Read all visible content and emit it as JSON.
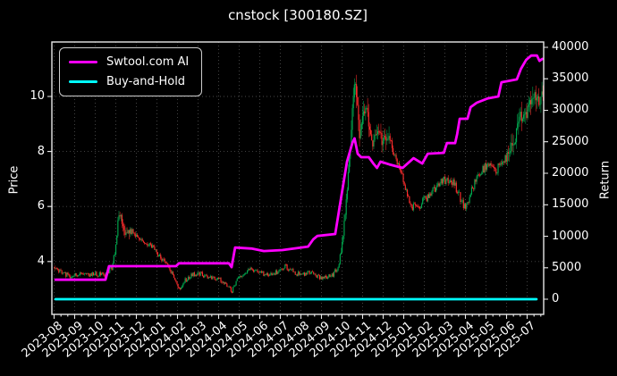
{
  "title": "cnstock [300180.SZ]",
  "colors": {
    "background": "#000000",
    "text": "#ffffff",
    "grid": "#4a4a4a",
    "spine": "#e8e8e8",
    "strategy_line": "#ff00ff",
    "buyhold_line": "#00ffff",
    "candle_up": "#00a94f",
    "candle_down": "#fd2c2c"
  },
  "legend": {
    "items": [
      {
        "label": "Swtool.com AI",
        "color": "#ff00ff"
      },
      {
        "label": "Buy-and-Hold",
        "color": "#00ffff"
      }
    ]
  },
  "axes": {
    "left": {
      "label": "Price",
      "ticks": [
        4,
        6,
        8,
        10
      ],
      "range": [
        2.08,
        11.98
      ]
    },
    "right": {
      "label": "Return",
      "ticks": [
        0,
        5000,
        10000,
        15000,
        20000,
        25000,
        30000,
        35000,
        40000
      ],
      "range": [
        -2410,
        40850
      ]
    },
    "x": {
      "labels": [
        "2023-08",
        "2023-09",
        "2023-10",
        "2023-11",
        "2023-12",
        "2024-01",
        "2024-02",
        "2024-03",
        "2024-04",
        "2024-05",
        "2024-06",
        "2024-07",
        "2024-08",
        "2024-09",
        "2024-10",
        "2024-11",
        "2024-12",
        "2025-01",
        "2025-02",
        "2025-03",
        "2025-04",
        "2025-05",
        "2025-06",
        "2025-07"
      ],
      "range_months": [
        0,
        23.83
      ],
      "label_rotation_deg": 40
    }
  },
  "chart_data": {
    "type": "candlestick+line",
    "title": "cnstock [300180.SZ]",
    "x_axis_months": [
      "2023-08",
      "2023-09",
      "2023-10",
      "2023-11",
      "2023-12",
      "2024-01",
      "2024-02",
      "2024-03",
      "2024-04",
      "2024-05",
      "2024-06",
      "2024-07",
      "2024-08",
      "2024-09",
      "2024-10",
      "2024-11",
      "2024-12",
      "2025-01",
      "2025-02",
      "2025-03",
      "2025-04",
      "2025-05",
      "2025-06",
      "2025-07"
    ],
    "legend_position": "upper-left",
    "grid": "dotted, vertical per month and horizontal at price ticks",
    "series": [
      {
        "name": "Swtool.com AI",
        "type": "line",
        "axis": "right",
        "color": "#ff00ff",
        "points": [
          [
            0.07,
            3100
          ],
          [
            2.5,
            3100
          ],
          [
            2.67,
            5250
          ],
          [
            5.93,
            5250
          ],
          [
            6.07,
            5700
          ],
          [
            8.5,
            5700
          ],
          [
            8.63,
            5100
          ],
          [
            8.8,
            8200
          ],
          [
            9.6,
            8050
          ],
          [
            10.2,
            7650
          ],
          [
            11.1,
            7800
          ],
          [
            12.35,
            8350
          ],
          [
            12.6,
            9500
          ],
          [
            12.8,
            10050
          ],
          [
            13.67,
            10350
          ],
          [
            13.98,
            16600
          ],
          [
            14.24,
            21800
          ],
          [
            14.5,
            24800
          ],
          [
            14.61,
            25550
          ],
          [
            14.76,
            23100
          ],
          [
            14.93,
            22550
          ],
          [
            15.3,
            22550
          ],
          [
            15.52,
            21550
          ],
          [
            15.7,
            20850
          ],
          [
            15.87,
            21850
          ],
          [
            16.3,
            21400
          ],
          [
            16.95,
            20850
          ],
          [
            17.48,
            22400
          ],
          [
            17.9,
            21550
          ],
          [
            18.17,
            23100
          ],
          [
            18.95,
            23250
          ],
          [
            19.1,
            24800
          ],
          [
            19.5,
            24800
          ],
          [
            19.6,
            26250
          ],
          [
            19.72,
            28650
          ],
          [
            20.1,
            28650
          ],
          [
            20.25,
            30500
          ],
          [
            20.55,
            31200
          ],
          [
            21.1,
            31900
          ],
          [
            21.6,
            32200
          ],
          [
            21.75,
            34450
          ],
          [
            22.5,
            34900
          ],
          [
            22.7,
            36600
          ],
          [
            22.95,
            38000
          ],
          [
            23.2,
            38700
          ],
          [
            23.48,
            38700
          ],
          [
            23.6,
            37850
          ],
          [
            23.74,
            38150
          ]
        ]
      },
      {
        "name": "Buy-and-Hold",
        "type": "line",
        "axis": "right",
        "color": "#00ffff",
        "points": [
          [
            0.07,
            0
          ],
          [
            23.45,
            0
          ]
        ]
      },
      {
        "name": "price-candles",
        "type": "candlestick",
        "axis": "left",
        "up_color": "#00a94f",
        "down_color": "#fd2c2c",
        "count": 480,
        "seed": 20240918,
        "close_anchors": [
          [
            0.0,
            3.8
          ],
          [
            0.4,
            3.6
          ],
          [
            0.8,
            3.45
          ],
          [
            1.2,
            3.55
          ],
          [
            1.6,
            3.5
          ],
          [
            2.0,
            3.55
          ],
          [
            2.4,
            3.5
          ],
          [
            2.8,
            3.75
          ],
          [
            3.0,
            4.5
          ],
          [
            3.15,
            5.8
          ],
          [
            3.3,
            5.5
          ],
          [
            3.45,
            5.0
          ],
          [
            3.7,
            5.15
          ],
          [
            4.0,
            4.9
          ],
          [
            4.4,
            4.65
          ],
          [
            4.8,
            4.5
          ],
          [
            5.2,
            4.1
          ],
          [
            5.6,
            3.75
          ],
          [
            5.9,
            3.3
          ],
          [
            6.1,
            3.0
          ],
          [
            6.35,
            3.3
          ],
          [
            6.7,
            3.5
          ],
          [
            7.0,
            3.6
          ],
          [
            7.4,
            3.45
          ],
          [
            7.8,
            3.4
          ],
          [
            8.2,
            3.3
          ],
          [
            8.45,
            3.1
          ],
          [
            8.65,
            2.9
          ],
          [
            8.9,
            3.4
          ],
          [
            9.2,
            3.55
          ],
          [
            9.6,
            3.75
          ],
          [
            10.0,
            3.6
          ],
          [
            10.4,
            3.5
          ],
          [
            10.8,
            3.6
          ],
          [
            11.2,
            3.85
          ],
          [
            11.6,
            3.65
          ],
          [
            12.0,
            3.5
          ],
          [
            12.4,
            3.6
          ],
          [
            12.8,
            3.45
          ],
          [
            13.2,
            3.4
          ],
          [
            13.6,
            3.55
          ],
          [
            13.85,
            3.9
          ],
          [
            14.05,
            4.9
          ],
          [
            14.25,
            6.6
          ],
          [
            14.45,
            8.8
          ],
          [
            14.6,
            10.6
          ],
          [
            14.7,
            10.2
          ],
          [
            14.85,
            8.3
          ],
          [
            15.0,
            9.2
          ],
          [
            15.2,
            9.6
          ],
          [
            15.45,
            8.3
          ],
          [
            15.7,
            8.8
          ],
          [
            15.95,
            8.4
          ],
          [
            16.25,
            8.7
          ],
          [
            16.55,
            7.9
          ],
          [
            16.85,
            7.3
          ],
          [
            17.1,
            6.7
          ],
          [
            17.35,
            6.05
          ],
          [
            17.65,
            5.9
          ],
          [
            17.95,
            6.2
          ],
          [
            18.3,
            6.45
          ],
          [
            18.7,
            6.75
          ],
          [
            19.1,
            7.05
          ],
          [
            19.4,
            6.9
          ],
          [
            19.7,
            6.4
          ],
          [
            20.0,
            5.95
          ],
          [
            20.3,
            6.6
          ],
          [
            20.6,
            7.1
          ],
          [
            20.9,
            7.35
          ],
          [
            21.2,
            7.65
          ],
          [
            21.5,
            7.35
          ],
          [
            21.8,
            7.5
          ],
          [
            22.1,
            7.9
          ],
          [
            22.4,
            8.4
          ],
          [
            22.7,
            9.35
          ],
          [
            22.95,
            9.2
          ],
          [
            23.25,
            10.05
          ],
          [
            23.5,
            9.8
          ],
          [
            23.74,
            10.0
          ]
        ],
        "high_volatility_windows": [
          [
            2.95,
            3.7
          ],
          [
            13.95,
            16.3
          ],
          [
            22.0,
            23.8
          ]
        ]
      }
    ]
  }
}
